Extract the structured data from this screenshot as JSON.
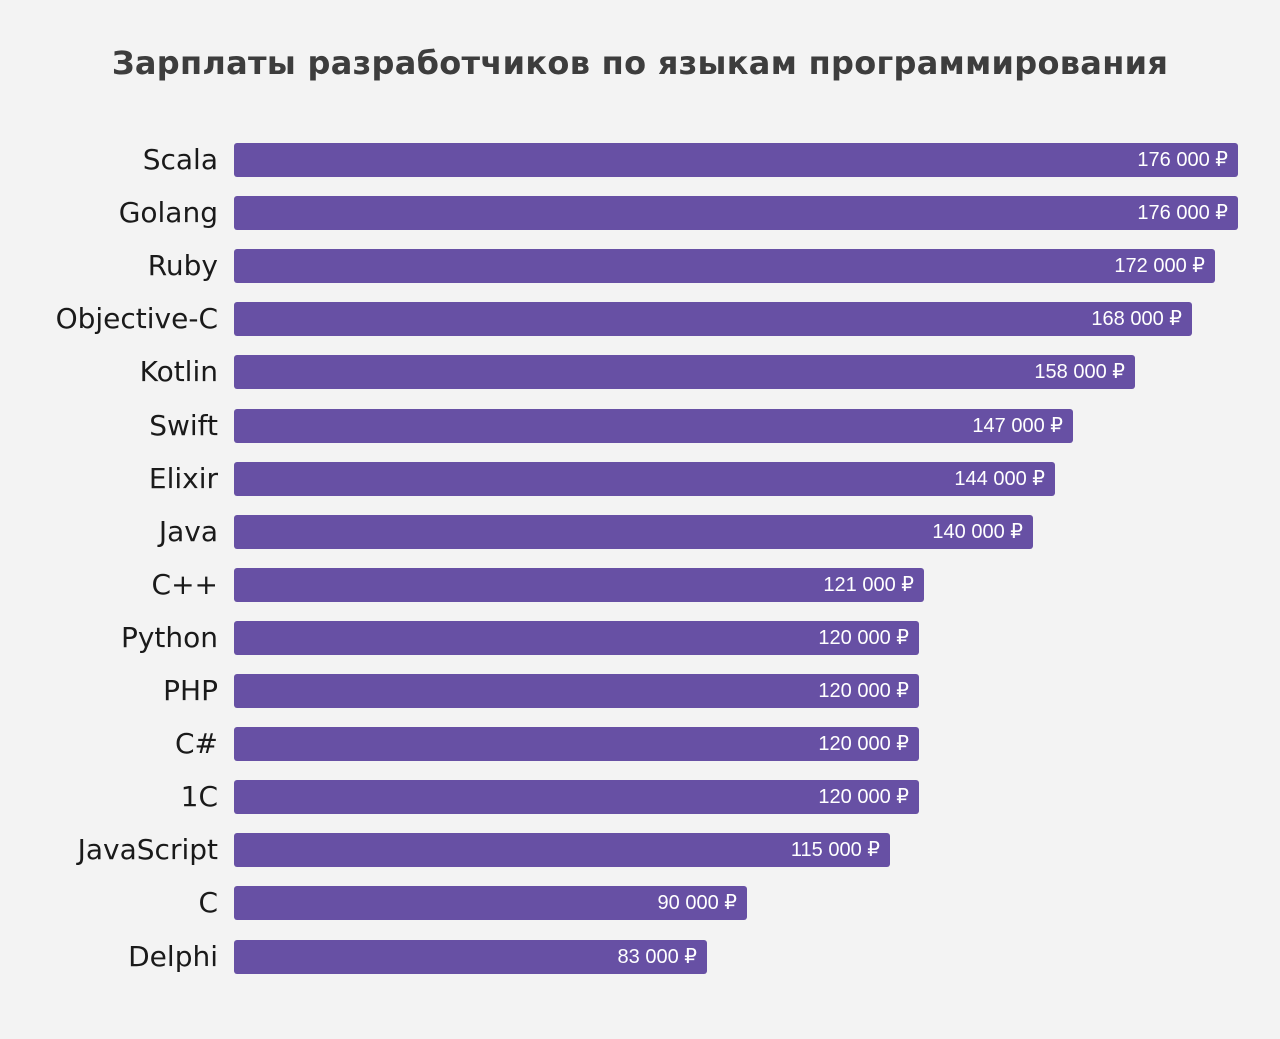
{
  "chart_data": {
    "type": "bar",
    "orientation": "horizontal",
    "title": "Зарплаты разработчиков по языкам программирования",
    "currency_suffix": " ₽",
    "bar_color": "#6750a4",
    "categories": [
      "Scala",
      "Golang",
      "Ruby",
      "Objective-C",
      "Kotlin",
      "Swift",
      "Elixir",
      "Java",
      "C++",
      "Python",
      "PHP",
      "C#",
      "1C",
      "JavaScript",
      "C",
      "Delphi"
    ],
    "values": [
      176000,
      176000,
      172000,
      168000,
      158000,
      147000,
      144000,
      140000,
      121000,
      120000,
      120000,
      120000,
      120000,
      115000,
      90000,
      83000
    ],
    "value_labels": [
      "176 000 ₽",
      "176 000 ₽",
      "172 000 ₽",
      "168 000 ₽",
      "158 000 ₽",
      "147 000 ₽",
      "144 000 ₽",
      "140 000 ₽",
      "121 000 ₽",
      "120 000 ₽",
      "120 000 ₽",
      "120 000 ₽",
      "120 000 ₽",
      "115 000 ₽",
      "90 000 ₽",
      "83 000 ₽"
    ],
    "xlim": [
      0,
      176000
    ],
    "grid": false,
    "legend": "none"
  }
}
